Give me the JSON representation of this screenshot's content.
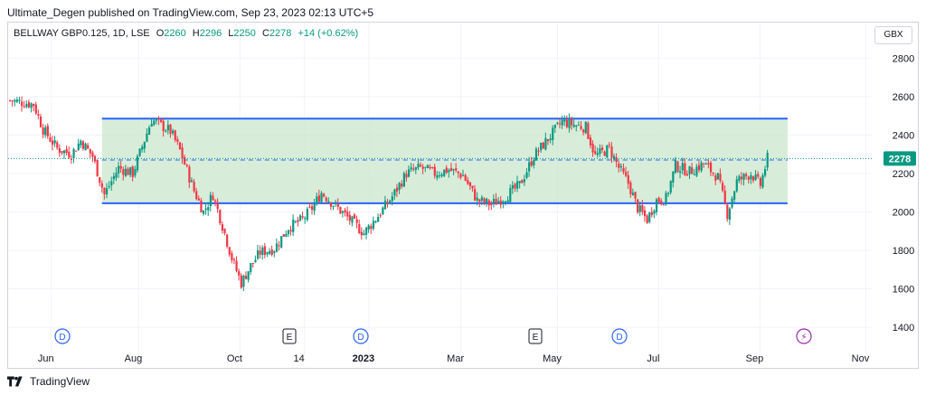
{
  "header": {
    "text": "Ultimate_Degen published on TradingView.com, Sep 23, 2023 02:13 UTC+5"
  },
  "legend": {
    "symbol": "BELLWAY GBP0.125, 1D, LSE",
    "open_label": "O",
    "open": "2260",
    "high_label": "H",
    "high": "2296",
    "low_label": "L",
    "low": "2250",
    "close_label": "C",
    "close": "2278",
    "change": "+14 (+0.62%)"
  },
  "currency_button": "GBX",
  "footer": {
    "brand": "TradingView"
  },
  "colors": {
    "up": "#089981",
    "down": "#f23645",
    "channel": "#2962ff",
    "band_fill": "#c8e6c9",
    "price_line": "#089981"
  },
  "chart_data": {
    "type": "candlestick",
    "title": "BELLWAY GBP0.125, 1D, LSE",
    "y_ticks": [
      1400,
      1600,
      1800,
      2000,
      2200,
      2400,
      2600,
      2800
    ],
    "ylim": [
      1330,
      2900
    ],
    "last_price": 2278,
    "x_ticks": [
      "Jun",
      "Aug",
      "Oct",
      "14",
      "2023",
      "Mar",
      "May",
      "Jul",
      "Sep",
      "Nov"
    ],
    "channel": {
      "upper": 2485,
      "lower": 2045,
      "start": "Jun",
      "end": "Sep"
    },
    "midline": 2270,
    "event_markers": [
      {
        "label": "D",
        "type": "dividend"
      },
      {
        "label": "E",
        "type": "earnings"
      },
      {
        "label": "D",
        "type": "dividend"
      },
      {
        "label": "E",
        "type": "earnings"
      },
      {
        "label": "D",
        "type": "dividend"
      },
      {
        "label": "⚡",
        "type": "flash"
      }
    ],
    "close_path": [
      [
        0,
        2580
      ],
      [
        10,
        2560
      ],
      [
        14,
        2430
      ],
      [
        20,
        2330
      ],
      [
        26,
        2300
      ],
      [
        30,
        2370
      ],
      [
        35,
        2290
      ],
      [
        40,
        2090
      ],
      [
        46,
        2230
      ],
      [
        52,
        2200
      ],
      [
        60,
        2480
      ],
      [
        68,
        2420
      ],
      [
        72,
        2320
      ],
      [
        78,
        2110
      ],
      [
        82,
        2000
      ],
      [
        86,
        2090
      ],
      [
        90,
        1930
      ],
      [
        94,
        1760
      ],
      [
        98,
        1630
      ],
      [
        102,
        1720
      ],
      [
        106,
        1790
      ],
      [
        112,
        1810
      ],
      [
        118,
        1920
      ],
      [
        124,
        1960
      ],
      [
        128,
        2020
      ],
      [
        132,
        2100
      ],
      [
        138,
        2030
      ],
      [
        144,
        1960
      ],
      [
        150,
        1890
      ],
      [
        156,
        1980
      ],
      [
        162,
        2080
      ],
      [
        168,
        2200
      ],
      [
        174,
        2230
      ],
      [
        180,
        2200
      ],
      [
        186,
        2220
      ],
      [
        192,
        2190
      ],
      [
        198,
        2060
      ],
      [
        204,
        2040
      ],
      [
        210,
        2080
      ],
      [
        216,
        2140
      ],
      [
        222,
        2290
      ],
      [
        228,
        2380
      ],
      [
        234,
        2470
      ],
      [
        240,
        2450
      ],
      [
        244,
        2440
      ],
      [
        248,
        2290
      ],
      [
        254,
        2330
      ],
      [
        258,
        2230
      ],
      [
        262,
        2150
      ],
      [
        266,
        2020
      ],
      [
        270,
        1960
      ],
      [
        274,
        2060
      ],
      [
        278,
        2070
      ],
      [
        282,
        2240
      ],
      [
        288,
        2210
      ],
      [
        294,
        2250
      ],
      [
        300,
        2180
      ],
      [
        304,
        1990
      ],
      [
        308,
        2160
      ],
      [
        314,
        2200
      ],
      [
        318,
        2140
      ],
      [
        321,
        2278
      ]
    ],
    "x_ticks_index": [
      18,
      56,
      100,
      128,
      156,
      196,
      238,
      282,
      326,
      372
    ],
    "n_bars": 372
  }
}
